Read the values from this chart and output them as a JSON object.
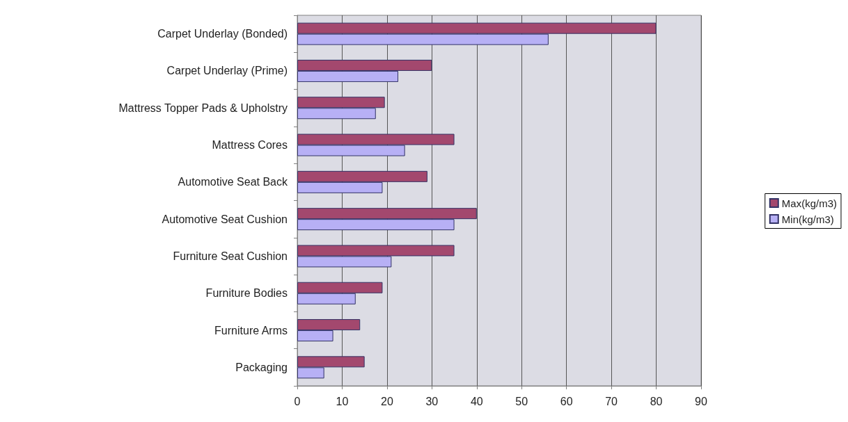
{
  "chart_data": {
    "type": "bar",
    "orientation": "horizontal",
    "categories": [
      "Carpet Underlay (Bonded)",
      "Carpet Underlay (Prime)",
      "Mattress Topper Pads & Upholstry",
      "Mattress Cores",
      "Automotive Seat Back",
      "Automotive Seat Cushion",
      "Furniture Seat Cushion",
      "Furniture Bodies",
      "Furniture Arms",
      "Packaging"
    ],
    "series": [
      {
        "name": "Max(kg/m3)",
        "color": "#a3486e",
        "values": [
          80,
          30,
          19.5,
          35,
          29,
          40,
          35,
          19,
          14,
          15
        ]
      },
      {
        "name": "Min(kg/m3)",
        "color": "#b7b0f5",
        "values": [
          56,
          22.5,
          17.5,
          24,
          19,
          35,
          21,
          13,
          8,
          6
        ]
      }
    ],
    "xlim": [
      0,
      90
    ],
    "xticks": [
      0,
      10,
      20,
      30,
      40,
      50,
      60,
      70,
      80,
      90
    ],
    "grid": "x",
    "legend": "right"
  }
}
